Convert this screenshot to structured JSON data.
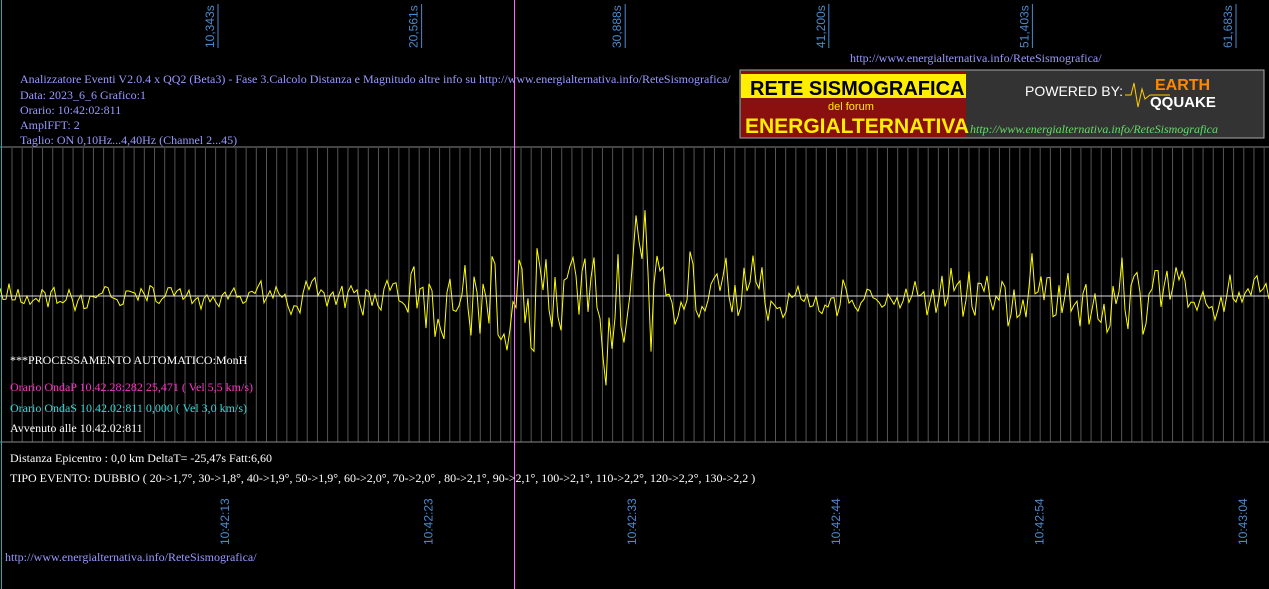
{
  "top_ticks": [
    "10,343s",
    "20,561s",
    "30,888s",
    "41,200s",
    "51,403s",
    "61,683s"
  ],
  "bottom_ticks": [
    "10:42:13",
    "10:42:23",
    "10:42:33",
    "10:42:44",
    "10:42:54",
    "10:43:04"
  ],
  "top_url": "http://www.energialternativa.info/ReteSismografica/",
  "header": [
    "Analizzatore Eventi V2.0.4 x QQ2 (Beta3) - Fase 3.Calcolo Distanza e Magnitudo altre info su http://www.energialternativa.info/ReteSismografica/",
    "Data: 2023_6_6 Grafico:1",
    "Orario: 10:42:02:811",
    "AmplFFT: 2",
    "Taglio: ON 0,10Hz...4,40Hz       (Channel 2...45)"
  ],
  "logo": {
    "line1": "RETE SISMOGRAFICA",
    "line2": "del forum",
    "line3": "ENERGIALTERNATIVA",
    "powered": "POWERED BY:",
    "earth": "EARTH",
    "quake": "QQUAKE",
    "url": "http://www.energialternativa.info/ReteSismografica"
  },
  "processing": {
    "title": "***PROCESSAMENTO AUTOMATICO:MonH",
    "onda_p": "Orario OndaP 10.42.28:282  25,471 ( Vel 5,5 km/s)",
    "onda_s": "Orario OndaS 10.42.02:811  0,000 ( Vel 3,0 km/s)",
    "avvenuto": "Avvenuto alle 10.42.02:811"
  },
  "result": {
    "distanza": "Distanza Epicentro : 0,0 km DeltaT= -25,47s  Fatt:6,60",
    "tipo": "TIPO EVENTO: DUBBIO ( 20->1,7°, 30->1,8°, 40->1,9°, 50->1,9°, 60->2,0°, 70->2,0° , 80->2,1°, 90->2,1°, 100->2,1°, 110->2,2°, 120->2,2°, 130->2,2 )"
  },
  "footer_url": "http://www.energialternativa.info/ReteSismografica/"
}
